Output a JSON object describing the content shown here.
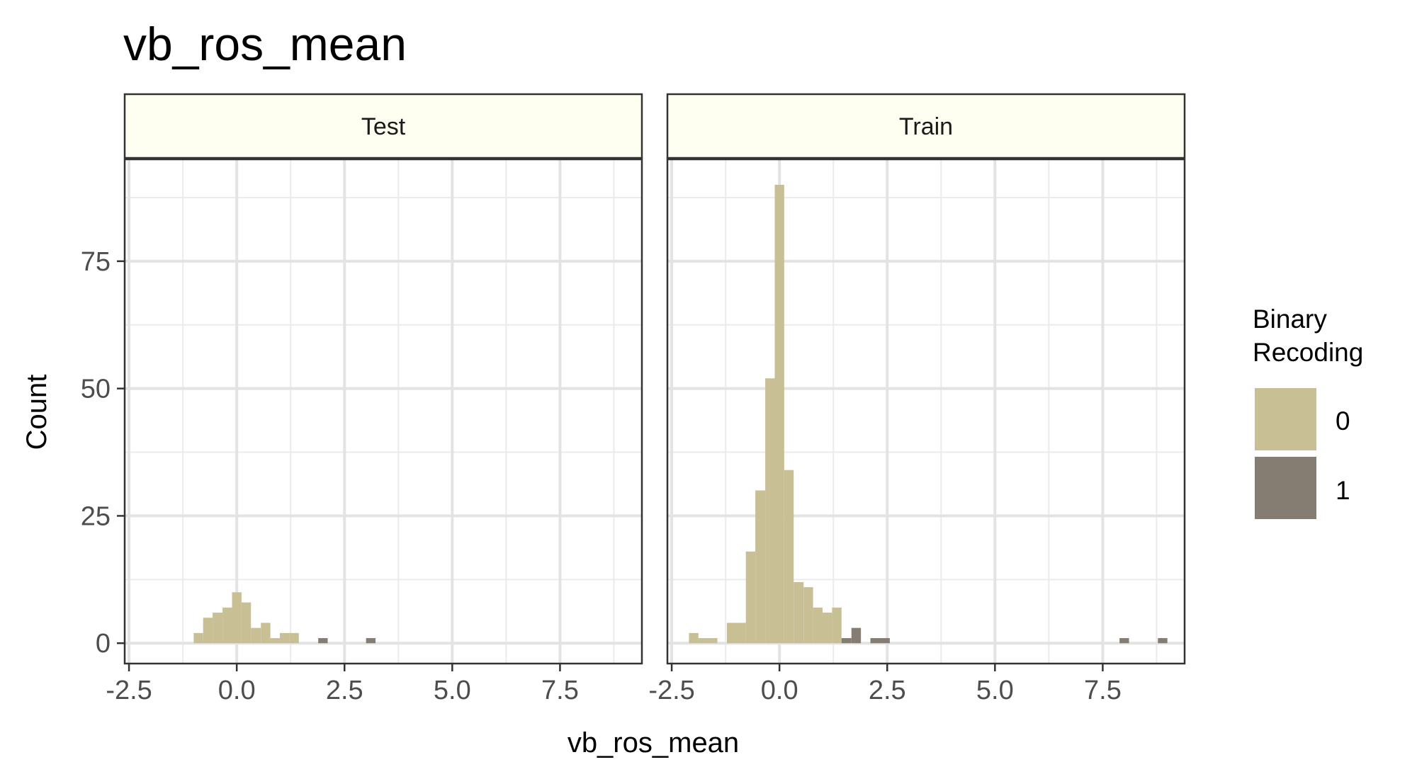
{
  "chart_data": {
    "type": "histogram",
    "title": "vb_ros_mean",
    "xlabel": "vb_ros_mean",
    "ylabel": "Count",
    "xlim": [
      -2.6,
      9.4
    ],
    "ylim": [
      -4,
      95
    ],
    "x_ticks": [
      -2.5,
      0.0,
      2.5,
      5.0,
      7.5
    ],
    "x_tick_labels": [
      "-2.5",
      "0.0",
      "2.5",
      "5.0",
      "7.5"
    ],
    "y_ticks": [
      0,
      25,
      50,
      75
    ],
    "y_tick_labels": [
      "0",
      "25",
      "50",
      "75"
    ],
    "grid": true,
    "legend": {
      "title_lines": [
        "Binary",
        "Recoding"
      ],
      "placement": "right",
      "entries": [
        {
          "label": "0",
          "color": "#c8bf94"
        },
        {
          "label": "1",
          "color": "#857d71"
        }
      ]
    },
    "colors": {
      "strip_fill": "#fefff0",
      "series_0": "#c8bf94",
      "series_1": "#857d71"
    },
    "panels": [
      {
        "name": "Test",
        "series": [
          {
            "name": "0",
            "bins": [
              {
                "x0": -1.0,
                "x1": -0.78,
                "count": 2
              },
              {
                "x0": -0.78,
                "x1": -0.56,
                "count": 5
              },
              {
                "x0": -0.56,
                "x1": -0.33,
                "count": 6
              },
              {
                "x0": -0.33,
                "x1": -0.11,
                "count": 7
              },
              {
                "x0": -0.11,
                "x1": 0.11,
                "count": 10
              },
              {
                "x0": 0.11,
                "x1": 0.33,
                "count": 8
              },
              {
                "x0": 0.33,
                "x1": 0.56,
                "count": 3
              },
              {
                "x0": 0.56,
                "x1": 0.78,
                "count": 4
              },
              {
                "x0": 0.78,
                "x1": 1.0,
                "count": 1
              },
              {
                "x0": 1.0,
                "x1": 1.22,
                "count": 2
              },
              {
                "x0": 1.22,
                "x1": 1.44,
                "count": 2
              }
            ]
          },
          {
            "name": "1",
            "bins": [
              {
                "x0": 1.89,
                "x1": 2.11,
                "count": 1
              },
              {
                "x0": 3.0,
                "x1": 3.22,
                "count": 1
              }
            ]
          }
        ]
      },
      {
        "name": "Train",
        "series": [
          {
            "name": "0",
            "bins": [
              {
                "x0": -2.1,
                "x1": -1.88,
                "count": 2
              },
              {
                "x0": -1.88,
                "x1": -1.44,
                "count": 1
              },
              {
                "x0": -1.22,
                "x1": -0.78,
                "count": 4
              },
              {
                "x0": -0.78,
                "x1": -0.56,
                "count": 18
              },
              {
                "x0": -0.56,
                "x1": -0.33,
                "count": 30
              },
              {
                "x0": -0.33,
                "x1": -0.11,
                "count": 52
              },
              {
                "x0": -0.11,
                "x1": 0.11,
                "count": 90
              },
              {
                "x0": 0.11,
                "x1": 0.33,
                "count": 34
              },
              {
                "x0": 0.33,
                "x1": 0.56,
                "count": 12
              },
              {
                "x0": 0.56,
                "x1": 0.78,
                "count": 11
              },
              {
                "x0": 0.78,
                "x1": 1.0,
                "count": 7
              },
              {
                "x0": 1.0,
                "x1": 1.22,
                "count": 6
              },
              {
                "x0": 1.22,
                "x1": 1.44,
                "count": 7
              }
            ]
          },
          {
            "name": "1",
            "bins": [
              {
                "x0": 1.44,
                "x1": 1.67,
                "count": 1
              },
              {
                "x0": 1.67,
                "x1": 1.89,
                "count": 3
              },
              {
                "x0": 2.11,
                "x1": 2.56,
                "count": 1
              },
              {
                "x0": 7.89,
                "x1": 8.11,
                "count": 1
              },
              {
                "x0": 8.78,
                "x1": 9.0,
                "count": 1
              }
            ]
          }
        ]
      }
    ]
  }
}
